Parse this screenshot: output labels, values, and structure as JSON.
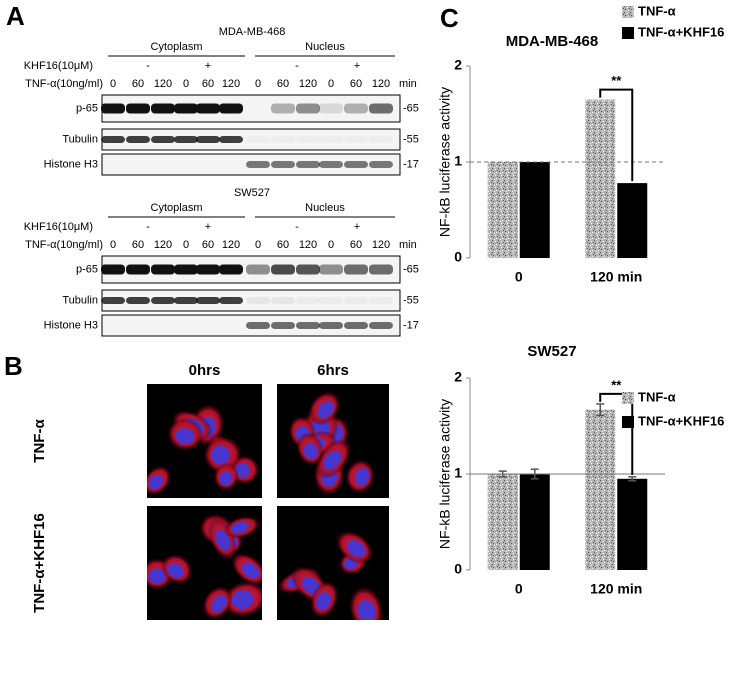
{
  "panel_a": {
    "label": "A",
    "blots": [
      {
        "title": "MDA-MB-468",
        "fractions": [
          "Cytoplasm",
          "Nucleus"
        ],
        "treatment_label": "KHF16(10μM)",
        "treatment_signs": [
          "-",
          "+",
          "-",
          "+"
        ],
        "time_label": "TNF-α(10ng/ml)",
        "times": [
          "0",
          "60",
          "120",
          "0",
          "60",
          "120",
          "0",
          "60",
          "120",
          "0",
          "60",
          "120"
        ],
        "time_unit": "min",
        "rows": [
          {
            "name": "p-65",
            "size": "-65"
          },
          {
            "name": "Tubulin",
            "size": "-55"
          },
          {
            "name": "Histone H3",
            "size": "-17"
          }
        ]
      },
      {
        "title": "SW527",
        "fractions": [
          "Cytoplasm",
          "Nucleus"
        ],
        "treatment_label": "KHF16(10μM)",
        "treatment_signs": [
          "-",
          "+",
          "-",
          "+"
        ],
        "time_label": "TNF-α(10ng/ml)",
        "times": [
          "0",
          "60",
          "120",
          "0",
          "60",
          "120",
          "0",
          "60",
          "120",
          "0",
          "60",
          "120"
        ],
        "time_unit": "min",
        "rows": [
          {
            "name": "p-65",
            "size": "-65"
          },
          {
            "name": "Tubulin",
            "size": "-55"
          },
          {
            "name": "Histone H3",
            "size": "-17"
          }
        ]
      }
    ]
  },
  "panel_b": {
    "label": "B",
    "columns": [
      "0hrs",
      "6hrs"
    ],
    "rows": [
      "TNF-α",
      "TNF-α+KHF16"
    ]
  },
  "panel_c_label": "C",
  "chart_data": [
    {
      "type": "bar",
      "title": "MDA-MB-468",
      "y_label": "NF-kB luciferase activity",
      "categories": [
        "0",
        "120 min"
      ],
      "series": [
        {
          "name": "TNF-α",
          "color": "#b4b4b4",
          "texture": "speckled",
          "values": [
            1,
            1.65
          ]
        },
        {
          "name": "TNF-α+KHF16",
          "color": "#000000",
          "values": [
            1,
            0.78
          ]
        }
      ],
      "ylim": [
        0,
        2
      ],
      "yticks": [
        0,
        1,
        2
      ],
      "reference_line": 1,
      "reference_line_style": "dashed",
      "significance_label": "**"
    },
    {
      "type": "bar",
      "title": "SW527",
      "y_label": "NF-kB luciferase activity",
      "categories": [
        "0",
        "120 min"
      ],
      "series": [
        {
          "name": "TNF-α",
          "color": "#b4b4b4",
          "texture": "speckled",
          "values": [
            1,
            1.67
          ],
          "errors": [
            0.03,
            0.06
          ]
        },
        {
          "name": "TNF-α+KHF16",
          "color": "#000000",
          "values": [
            1,
            0.95
          ],
          "errors": [
            0.05,
            0.02
          ]
        }
      ],
      "ylim": [
        0,
        2
      ],
      "yticks": [
        0,
        1,
        2
      ],
      "reference_line": 1,
      "reference_line_style": "solid",
      "significance_label": "**"
    }
  ]
}
